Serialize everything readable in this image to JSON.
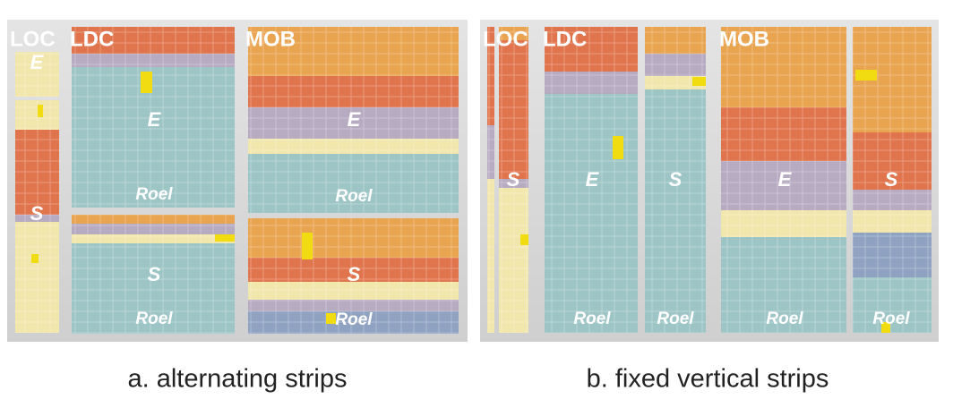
{
  "figures": [
    {
      "caption": "a. alternating strips",
      "groups": [
        {
          "label": "LOC",
          "blocks": [
            {
              "label": "E"
            },
            {
              "label": "S"
            }
          ]
        },
        {
          "label": "LDC",
          "blocks": [
            {
              "label": "E",
              "author": "Roel"
            },
            {
              "label": "S",
              "author": "Roel"
            }
          ]
        },
        {
          "label": "MOB",
          "blocks": [
            {
              "label": "E",
              "author": "Roel"
            },
            {
              "label": "S",
              "author": "Roel"
            }
          ]
        }
      ]
    },
    {
      "caption": "b. fixed vertical strips",
      "groups": [
        {
          "label": "LOC",
          "blocks": [
            {
              "label": "S"
            }
          ]
        },
        {
          "label": "LDC",
          "blocks": [
            {
              "label": "E",
              "author": "Roel"
            },
            {
              "label": "S",
              "author": "Roel"
            }
          ]
        },
        {
          "label": "MOB",
          "blocks": [
            {
              "label": "E",
              "author": "Roel"
            },
            {
              "label": "S",
              "author": "Roel"
            }
          ]
        }
      ]
    }
  ]
}
